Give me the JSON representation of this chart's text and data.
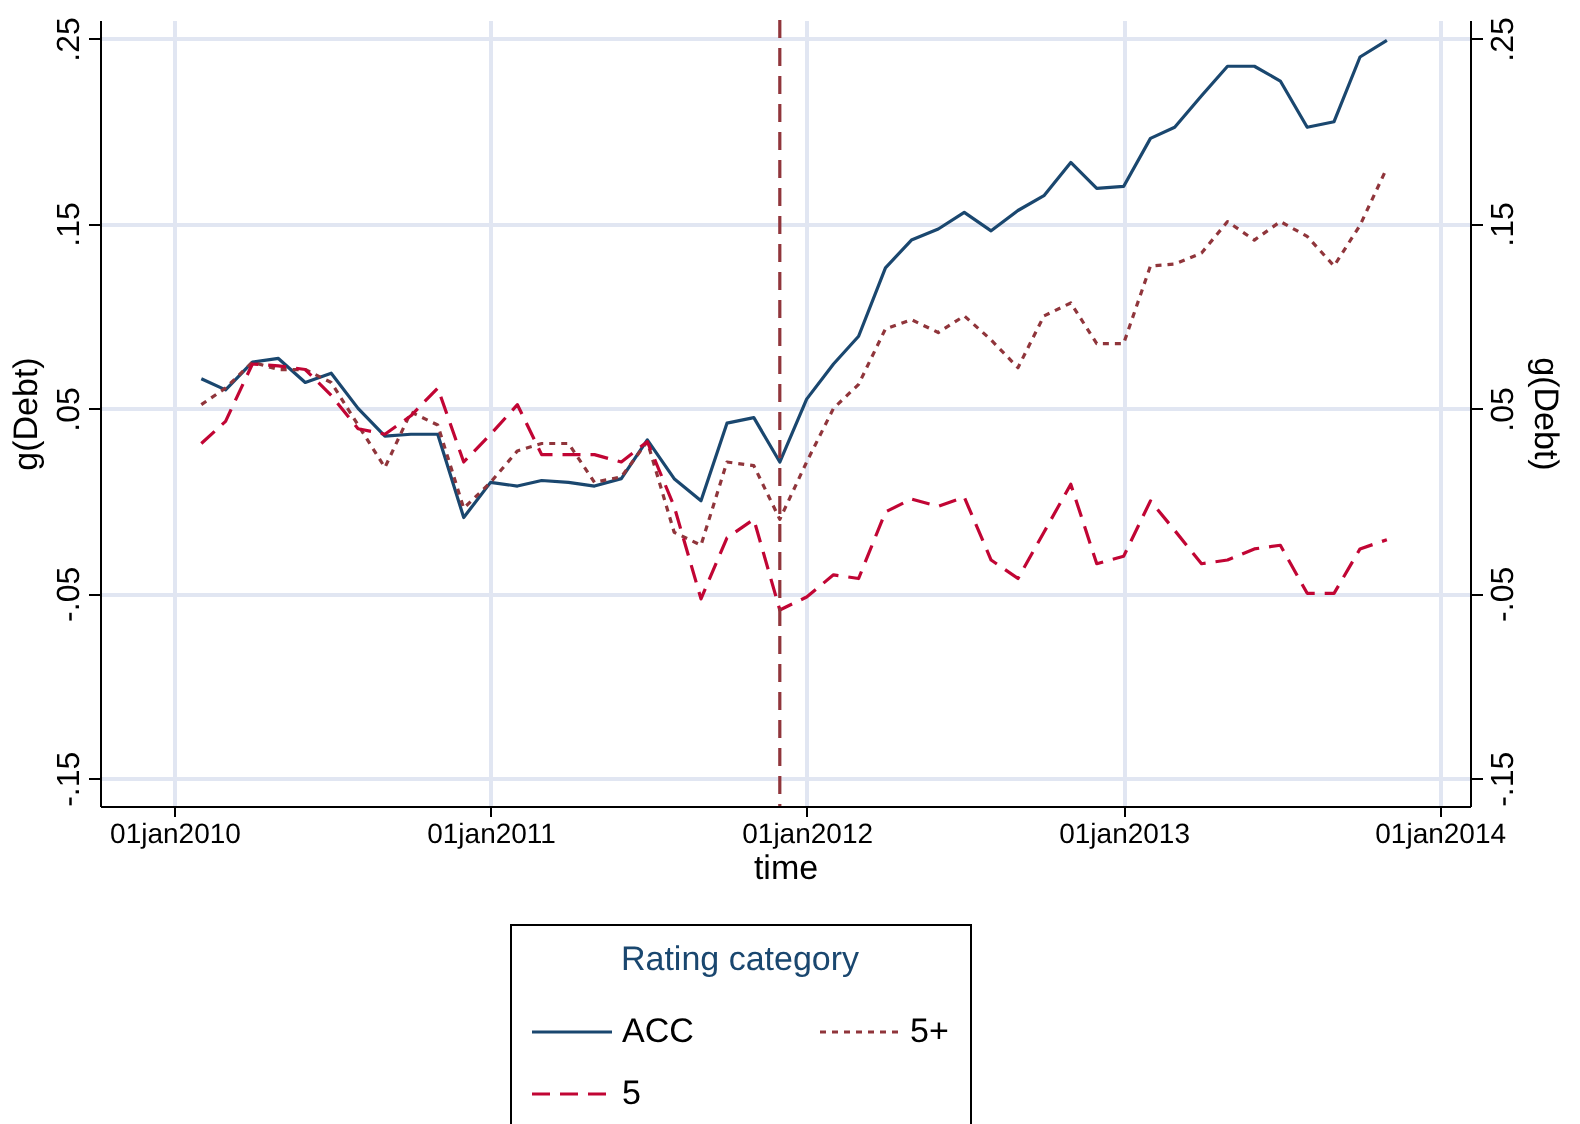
{
  "chart_data": {
    "type": "line",
    "xlabel": "time",
    "ylabel": "g(Debt)",
    "y2label": "g(Debt)",
    "legend_title": "Rating category",
    "legend": "bottom",
    "grid": true,
    "x": [
      "2010-02",
      "2010-03",
      "2010-04",
      "2010-05",
      "2010-06",
      "2010-07",
      "2010-08",
      "2010-09",
      "2010-10",
      "2010-11",
      "2010-12",
      "2011-01",
      "2011-02",
      "2011-03",
      "2011-04",
      "2011-05",
      "2011-06",
      "2011-07",
      "2011-08",
      "2011-09",
      "2011-10",
      "2011-11",
      "2011-12",
      "2012-01",
      "2012-02",
      "2012-03",
      "2012-04",
      "2012-05",
      "2012-06",
      "2012-07",
      "2012-08",
      "2012-09",
      "2012-10",
      "2012-11",
      "2012-12",
      "2013-01",
      "2013-02",
      "2013-03",
      "2013-04",
      "2013-05",
      "2013-06",
      "2013-07",
      "2013-08",
      "2013-09",
      "2013-10",
      "2013-11"
    ],
    "xlim": [
      "2009-10-07",
      "2014-02-05"
    ],
    "xticks": [
      {
        "value": "2010-01-01",
        "label": "01jan2010"
      },
      {
        "value": "2011-01-01",
        "label": "01jan2011"
      },
      {
        "value": "2012-01-01",
        "label": "01jan2012"
      },
      {
        "value": "2013-01-01",
        "label": "01jan2013"
      },
      {
        "value": "2014-01-01",
        "label": "01jan2014"
      }
    ],
    "ylim": [
      -0.165,
      0.26
    ],
    "yticks": [
      {
        "value": -0.15,
        "label": "-.15"
      },
      {
        "value": -0.05,
        "label": "-.05"
      },
      {
        "value": 0.05,
        "label": ".05"
      },
      {
        "value": 0.15,
        "label": ".15"
      },
      {
        "value": 0.25,
        "label": ".25"
      }
    ],
    "y2lim": [
      -0.165,
      0.26
    ],
    "y2ticks": [
      {
        "value": -0.15,
        "label": "-.15"
      },
      {
        "value": -0.05,
        "label": "-.05"
      },
      {
        "value": 0.05,
        "label": ".05"
      },
      {
        "value": 0.15,
        "label": ".15"
      },
      {
        "value": 0.25,
        "label": ".25"
      }
    ],
    "series": [
      {
        "name": "ACC",
        "color": "#1a476f",
        "line_style": "solid",
        "values": [
          0.066,
          0.06,
          0.075,
          0.077,
          0.064,
          0.069,
          0.05,
          0.035,
          0.036,
          0.036,
          -0.009,
          0.01,
          0.008,
          0.011,
          0.01,
          0.008,
          0.012,
          0.033,
          0.012,
          0.0,
          0.042,
          0.045,
          0.021,
          0.055,
          0.074,
          0.089,
          0.126,
          0.141,
          0.147,
          0.156,
          0.146,
          0.157,
          0.165,
          0.183,
          0.169,
          0.17,
          0.196,
          0.202,
          0.219,
          0.235,
          0.235,
          0.227,
          0.202,
          0.205,
          0.24,
          0.249
        ]
      },
      {
        "name": "5+",
        "color": "#90353b",
        "line_style": "dotted",
        "values": [
          0.052,
          0.061,
          0.075,
          0.071,
          0.071,
          0.064,
          0.041,
          0.018,
          0.048,
          0.041,
          -0.004,
          0.01,
          0.027,
          0.031,
          0.031,
          0.01,
          0.013,
          0.032,
          -0.017,
          -0.024,
          0.021,
          0.019,
          -0.01,
          0.021,
          0.05,
          0.063,
          0.093,
          0.098,
          0.091,
          0.1,
          0.087,
          0.072,
          0.1,
          0.107,
          0.085,
          0.085,
          0.127,
          0.128,
          0.134,
          0.151,
          0.141,
          0.151,
          0.143,
          0.127,
          0.149,
          0.18
        ]
      },
      {
        "name": "5",
        "color": "#c10534",
        "line_style": "dashed",
        "values": [
          0.031,
          0.043,
          0.074,
          0.073,
          0.071,
          0.057,
          0.039,
          0.036,
          0.046,
          0.061,
          0.021,
          0.036,
          0.052,
          0.025,
          0.025,
          0.025,
          0.021,
          0.032,
          -0.003,
          -0.053,
          -0.02,
          -0.01,
          -0.059,
          -0.052,
          -0.04,
          -0.042,
          -0.006,
          0.001,
          -0.003,
          0.002,
          -0.032,
          -0.042,
          -0.017,
          0.009,
          -0.034,
          -0.03,
          0.0,
          -0.016,
          -0.034,
          -0.032,
          -0.026,
          -0.024,
          -0.05,
          -0.05,
          -0.026,
          -0.021
        ]
      }
    ],
    "ref_lines": [
      {
        "axis": "x",
        "value": "2011-12-01",
        "color": "#90353b",
        "line_style": "dashed"
      }
    ]
  }
}
